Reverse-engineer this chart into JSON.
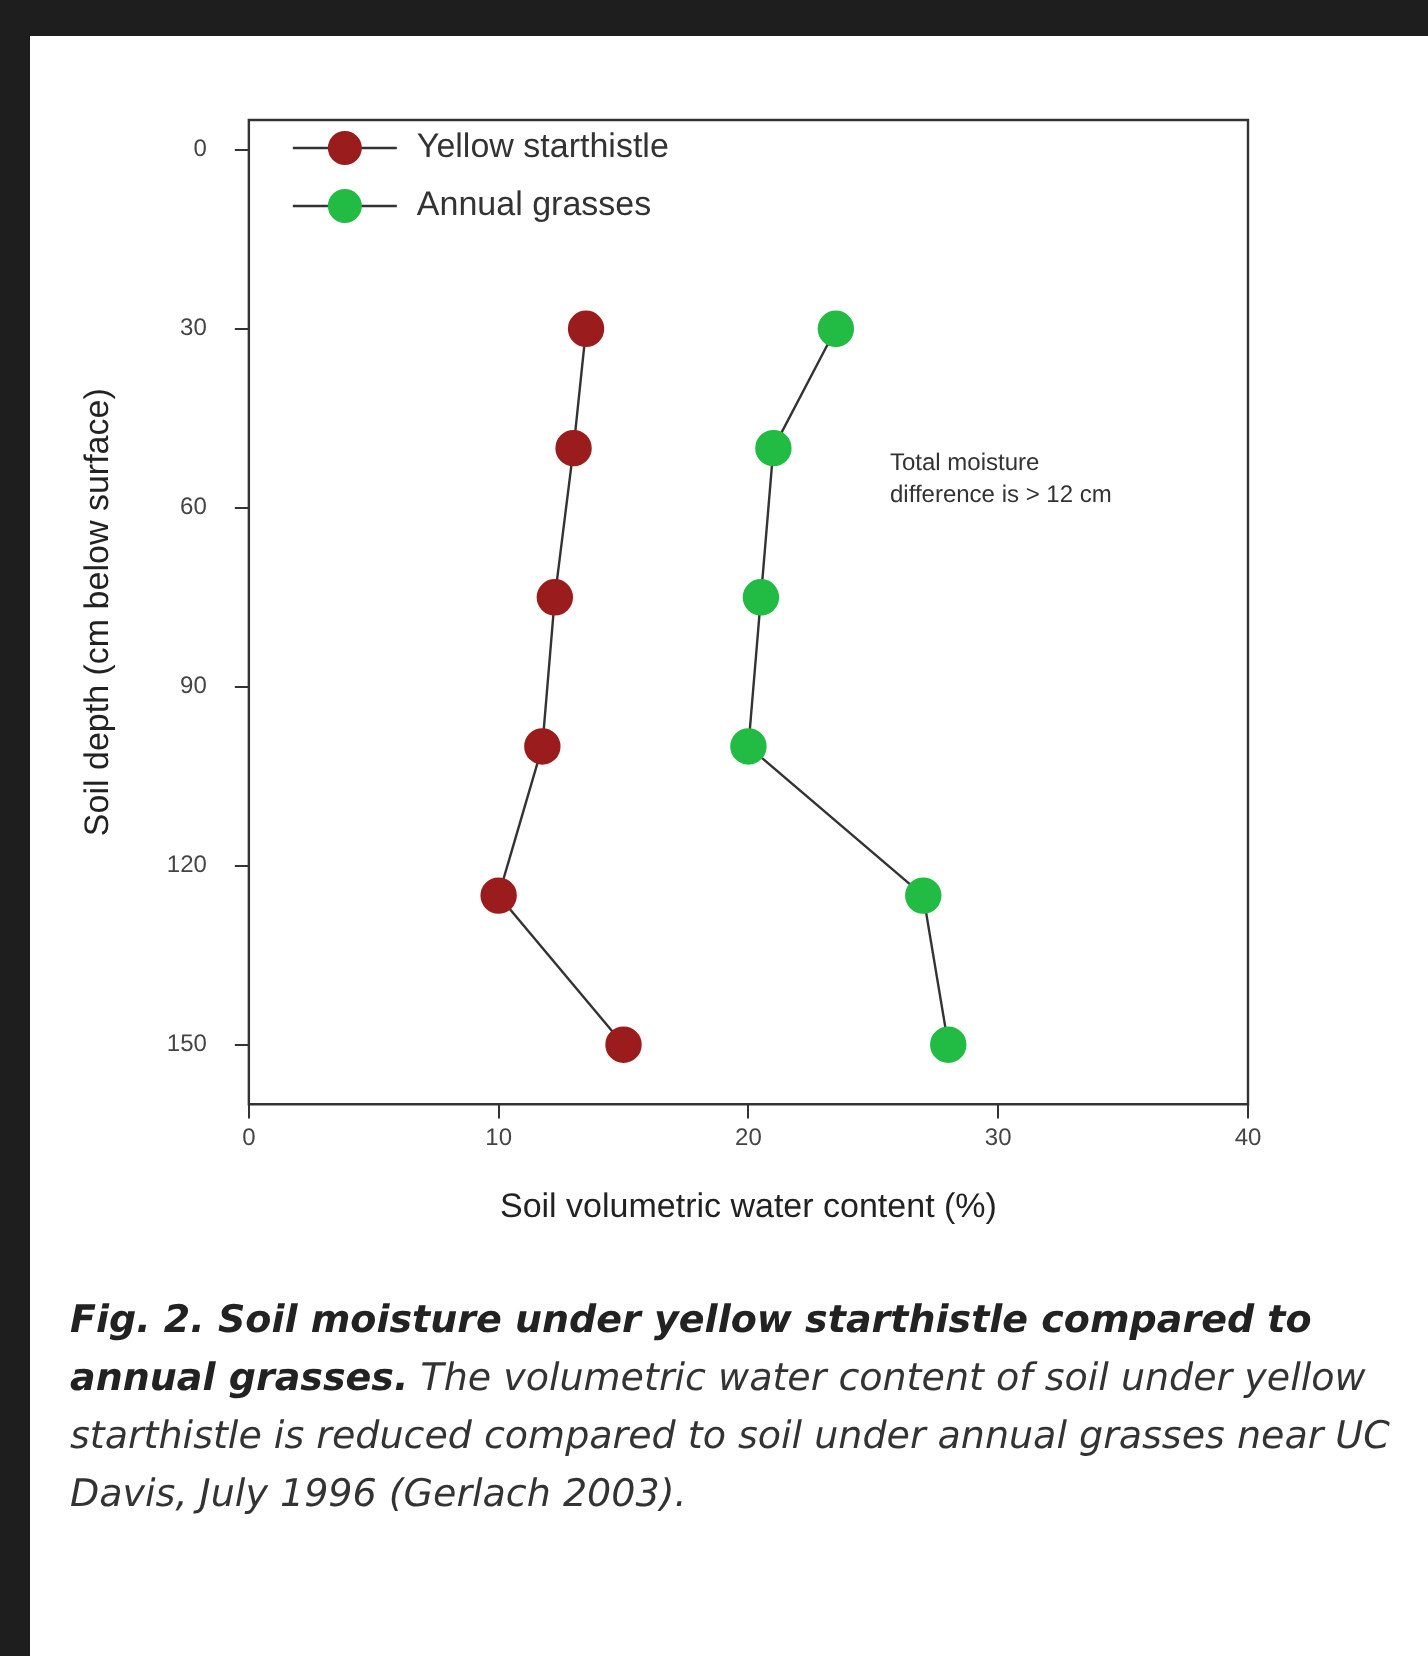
{
  "chart_data": {
    "type": "line",
    "title": "Fig. 2. Soil moisture under yellow starthistle compared to annual grasses.",
    "xlabel": "Soil volumetric water content (%)",
    "ylabel": "Soil depth (cm below surface)",
    "annotations": [
      "Total moisture difference is > 12 cm",
      "The volumetric water content of soil under yellow starthistle is reduced compared to soil under annual grasses near UC Davis, July 1996 (Gerlach 2003)."
    ],
    "series": [
      {
        "name": "Yellow starthistle",
        "color": "#9b1c1c",
        "x": [
          13.5,
          13.0,
          12.25,
          11.75,
          10.0,
          15.0
        ],
        "values": [
          30,
          50,
          75,
          100,
          125,
          150
        ]
      },
      {
        "name": "Annual grasses",
        "color": "#22bb44",
        "x": [
          23.5,
          21.0,
          20.5,
          20.0,
          27.0,
          28.0
        ],
        "values": [
          30,
          50,
          75,
          100,
          125,
          150
        ]
      }
    ],
    "xlim": [
      0,
      40
    ],
    "xticks": [
      0,
      10,
      20,
      30,
      40
    ],
    "ylim": [
      160,
      -5
    ],
    "yticks": [
      0,
      30,
      60,
      90,
      120,
      150
    ],
    "grid": false,
    "legend": "top left",
    "marker": "circle",
    "line_style": "solid"
  }
}
